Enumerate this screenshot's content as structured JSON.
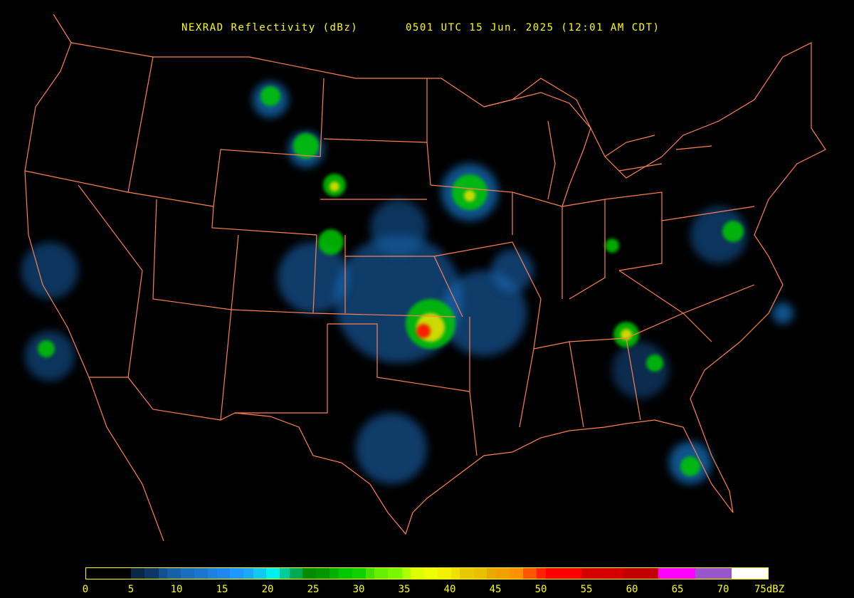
{
  "header": {
    "product": "NEXRAD Reflectivity (dBz)",
    "time": "0501 UTC 15 Jun. 2025 (12:01 AM CDT)"
  },
  "colors": {
    "background": "#000000",
    "borders": "#ff7f50",
    "text": "#ffff00"
  },
  "legend": {
    "unit": "dBZ",
    "ticks": [
      "0",
      "5",
      "10",
      "15",
      "20",
      "25",
      "30",
      "35",
      "40",
      "45",
      "50",
      "55",
      "60",
      "65",
      "70",
      "75dBZ"
    ],
    "range": [
      0,
      75
    ],
    "bins": [
      {
        "from": 0,
        "color": "#000000"
      },
      {
        "from": 4.9,
        "color": "#0b2545"
      },
      {
        "from": 6.4,
        "color": "#0d3566"
      },
      {
        "from": 8,
        "color": "#12508f"
      },
      {
        "from": 8.9,
        "color": "#1560a8"
      },
      {
        "from": 10.4,
        "color": "#1a6dc0"
      },
      {
        "from": 11.9,
        "color": "#1c75cf"
      },
      {
        "from": 13.4,
        "color": "#1e80e0"
      },
      {
        "from": 14.4,
        "color": "#1e88f0"
      },
      {
        "from": 15.8,
        "color": "#1e98ff"
      },
      {
        "from": 17.3,
        "color": "#1aaaf5"
      },
      {
        "from": 18.4,
        "color": "#10c8f0"
      },
      {
        "from": 19.8,
        "color": "#00f0f0"
      },
      {
        "from": 21.3,
        "color": "#00cc99"
      },
      {
        "from": 22.4,
        "color": "#00aa55"
      },
      {
        "from": 23.8,
        "color": "#008c00"
      },
      {
        "from": 25.3,
        "color": "#009600"
      },
      {
        "from": 26.8,
        "color": "#00b000"
      },
      {
        "from": 27.8,
        "color": "#00c800"
      },
      {
        "from": 29.3,
        "color": "#10d000"
      },
      {
        "from": 30.8,
        "color": "#44e000"
      },
      {
        "from": 31.7,
        "color": "#66f000"
      },
      {
        "from": 33.2,
        "color": "#77f800"
      },
      {
        "from": 34.8,
        "color": "#aaff00"
      },
      {
        "from": 35.7,
        "color": "#ddff00"
      },
      {
        "from": 37.3,
        "color": "#eeff00"
      },
      {
        "from": 38.7,
        "color": "#f0f000"
      },
      {
        "from": 40.2,
        "color": "#f0e000"
      },
      {
        "from": 41.1,
        "color": "#e8c800"
      },
      {
        "from": 42.7,
        "color": "#e8c000"
      },
      {
        "from": 44.1,
        "color": "#e8aa00"
      },
      {
        "from": 45.1,
        "color": "#f0a000"
      },
      {
        "from": 46.6,
        "color": "#ff9000"
      },
      {
        "from": 48.1,
        "color": "#ff5500"
      },
      {
        "from": 49.6,
        "color": "#ff2200"
      },
      {
        "from": 50.6,
        "color": "#ff0000"
      },
      {
        "from": 54.5,
        "color": "#d40000"
      },
      {
        "from": 59.1,
        "color": "#c00000"
      },
      {
        "from": 63,
        "color": "#ff00ff"
      },
      {
        "from": 67,
        "color": "#9955cc"
      },
      {
        "from": 71,
        "color": "#ffffff"
      }
    ]
  }
}
